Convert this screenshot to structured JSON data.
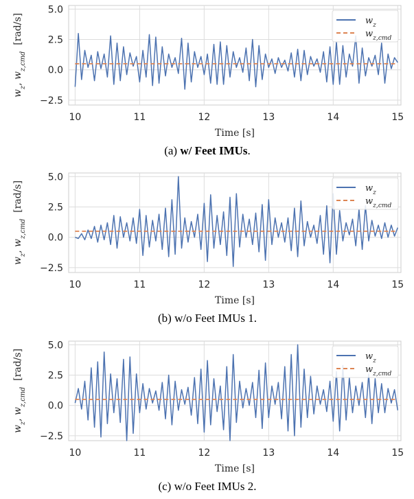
{
  "colors": {
    "wz": "#4c72b0",
    "cmd": "#dd8452",
    "grid": "#dcdcdc"
  },
  "chart_data": [
    {
      "type": "line",
      "caption_prefix": "(a) ",
      "caption_bold": "w/ Feet IMUs",
      "caption_suffix": ".",
      "xlabel": "Time [s]",
      "ylabel": "w_z, w_z,cmd [rad/s]",
      "xlim": [
        9.9,
        15.05
      ],
      "ylim": [
        -2.9,
        5.3
      ],
      "xticks": [
        10,
        11,
        12,
        13,
        14,
        15
      ],
      "yticks": [
        -2.5,
        0.0,
        2.5,
        5.0
      ],
      "legend": {
        "position": "top-right",
        "entries": [
          "w_z",
          "w_z,cmd"
        ]
      },
      "series": [
        {
          "name": "w_z",
          "style": "solid",
          "x": [
            10.0,
            10.05,
            10.1,
            10.15,
            10.2,
            10.25,
            10.3,
            10.35,
            10.4,
            10.45,
            10.5,
            10.55,
            10.6,
            10.65,
            10.7,
            10.75,
            10.8,
            10.85,
            10.9,
            10.95,
            11.0,
            11.05,
            11.1,
            11.15,
            11.2,
            11.25,
            11.3,
            11.35,
            11.4,
            11.45,
            11.5,
            11.55,
            11.6,
            11.65,
            11.7,
            11.75,
            11.8,
            11.85,
            11.9,
            11.95,
            12.0,
            12.05,
            12.1,
            12.15,
            12.2,
            12.25,
            12.3,
            12.35,
            12.4,
            12.45,
            12.5,
            12.55,
            12.6,
            12.65,
            12.7,
            12.75,
            12.8,
            12.85,
            12.9,
            12.95,
            13.0,
            13.05,
            13.1,
            13.15,
            13.2,
            13.25,
            13.3,
            13.35,
            13.4,
            13.45,
            13.5,
            13.55,
            13.6,
            13.65,
            13.7,
            13.75,
            13.8,
            13.85,
            13.9,
            13.95,
            14.0,
            14.05,
            14.1,
            14.15,
            14.2,
            14.25,
            14.3,
            14.35,
            14.4,
            14.45,
            14.5,
            14.55,
            14.6,
            14.65,
            14.7,
            14.75,
            14.8,
            14.85,
            14.9,
            14.95,
            15.0
          ],
          "y": [
            -1.4,
            3.0,
            -0.8,
            1.6,
            0.2,
            1.2,
            -0.9,
            1.5,
            0.1,
            1.3,
            -0.6,
            2.8,
            -1.2,
            2.2,
            -0.9,
            1.9,
            -0.4,
            1.4,
            0.3,
            1.1,
            -1.0,
            1.6,
            -0.6,
            2.9,
            -1.3,
            2.7,
            -1.1,
            1.9,
            -0.5,
            1.3,
            0.2,
            1.0,
            -0.3,
            2.6,
            -1.6,
            2.2,
            -1.0,
            1.5,
            0.2,
            1.1,
            -0.4,
            1.3,
            -1.1,
            2.1,
            -1.2,
            2.3,
            -1.2,
            2.0,
            -0.6,
            1.5,
            0.2,
            1.0,
            -0.2,
            1.8,
            -0.9,
            2.5,
            -1.4,
            2.0,
            -0.8,
            1.3,
            0.2,
            0.9,
            -0.3,
            1.0,
            0.2,
            0.8,
            -0.1,
            1.4,
            -0.6,
            1.7,
            -0.9,
            1.6,
            -0.4,
            1.1,
            0.3,
            0.9,
            -0.2,
            1.5,
            -1.0,
            1.9,
            -1.2,
            2.3,
            -1.2,
            2.0,
            -0.6,
            1.3,
            0.3,
            2.8,
            -1.1,
            1.8,
            -0.5,
            1.0,
            0.3,
            1.2,
            -0.4,
            2.2,
            -1.1,
            1.3,
            0.1,
            1.0,
            0.6
          ]
        },
        {
          "name": "w_z,cmd",
          "style": "dashed",
          "x": [
            10.0,
            15.0
          ],
          "y": [
            0.5,
            0.5
          ]
        }
      ]
    },
    {
      "type": "line",
      "caption_prefix": "(b) ",
      "caption_bold": "",
      "caption_suffix": "w/o Feet IMUs 1.",
      "xlabel": "Time [s]",
      "ylabel": "w_z, w_z,cmd [rad/s]",
      "xlim": [
        9.9,
        15.05
      ],
      "ylim": [
        -2.9,
        5.3
      ],
      "xticks": [
        10,
        11,
        12,
        13,
        14,
        15
      ],
      "yticks": [
        -2.5,
        0.0,
        2.5,
        5.0
      ],
      "legend": {
        "position": "top-right",
        "entries": [
          "w_z",
          "w_z,cmd"
        ]
      },
      "series": [
        {
          "name": "w_z",
          "style": "solid",
          "x": [
            10.0,
            10.05,
            10.1,
            10.15,
            10.2,
            10.25,
            10.3,
            10.35,
            10.4,
            10.45,
            10.5,
            10.55,
            10.6,
            10.65,
            10.7,
            10.75,
            10.8,
            10.85,
            10.9,
            10.95,
            11.0,
            11.05,
            11.1,
            11.15,
            11.2,
            11.25,
            11.3,
            11.35,
            11.4,
            11.45,
            11.5,
            11.55,
            11.6,
            11.65,
            11.7,
            11.75,
            11.8,
            11.85,
            11.9,
            11.95,
            12.0,
            12.05,
            12.1,
            12.15,
            12.2,
            12.25,
            12.3,
            12.35,
            12.4,
            12.45,
            12.5,
            12.55,
            12.6,
            12.65,
            12.7,
            12.75,
            12.8,
            12.85,
            12.9,
            12.95,
            13.0,
            13.05,
            13.1,
            13.15,
            13.2,
            13.25,
            13.3,
            13.35,
            13.4,
            13.45,
            13.5,
            13.55,
            13.6,
            13.65,
            13.7,
            13.75,
            13.8,
            13.85,
            13.9,
            13.95,
            14.0,
            14.05,
            14.1,
            14.15,
            14.2,
            14.25,
            14.3,
            14.35,
            14.4,
            14.45,
            14.5,
            14.55,
            14.6,
            14.65,
            14.7,
            14.75,
            14.8,
            14.85,
            14.9,
            14.95,
            15.0
          ],
          "y": [
            0.0,
            -0.1,
            0.3,
            -0.2,
            0.6,
            -0.1,
            0.9,
            -0.4,
            1.0,
            -0.2,
            1.2,
            -0.6,
            1.8,
            -0.9,
            1.7,
            0.0,
            1.2,
            -0.3,
            1.6,
            -0.5,
            2.3,
            -1.5,
            1.8,
            -0.8,
            1.4,
            -0.3,
            1.9,
            -1.0,
            2.4,
            -1.6,
            3.1,
            -1.4,
            5.0,
            -0.9,
            1.6,
            -0.4,
            1.3,
            0.0,
            1.9,
            -1.0,
            2.8,
            -2.0,
            3.5,
            -0.9,
            1.8,
            -0.6,
            2.1,
            -1.5,
            3.3,
            -2.4,
            3.6,
            -0.8,
            1.9,
            0.0,
            1.5,
            -0.6,
            2.0,
            -1.2,
            2.7,
            -1.9,
            3.1,
            -0.6,
            1.6,
            0.0,
            1.2,
            -0.4,
            1.6,
            -1.1,
            2.4,
            -1.6,
            3.0,
            -0.7,
            1.3,
            0.0,
            1.0,
            -0.5,
            1.8,
            -1.4,
            2.6,
            -2.1,
            3.6,
            -1.4,
            2.2,
            -0.3,
            1.2,
            0.2,
            1.5,
            -0.7,
            2.3,
            -1.0,
            2.6,
            -0.3,
            1.4,
            0.1,
            1.0,
            -0.1,
            1.2,
            0.0,
            1.0,
            0.1,
            0.8
          ]
        },
        {
          "name": "w_z,cmd",
          "style": "dashed",
          "x": [
            10.0,
            15.0
          ],
          "y": [
            0.5,
            0.5
          ]
        }
      ]
    },
    {
      "type": "line",
      "caption_prefix": "(c) ",
      "caption_bold": "",
      "caption_suffix": "w/o Feet IMUs 2.",
      "xlabel": "Time [s]",
      "ylabel": "w_z, w_z,cmd [rad/s]",
      "xlim": [
        9.9,
        15.05
      ],
      "ylim": [
        -2.9,
        5.3
      ],
      "xticks": [
        10,
        11,
        12,
        13,
        14,
        15
      ],
      "yticks": [
        -2.5,
        0.0,
        2.5,
        5.0
      ],
      "legend": {
        "position": "top-right",
        "entries": [
          "w_z",
          "w_z,cmd"
        ]
      },
      "series": [
        {
          "name": "w_z",
          "style": "solid",
          "x": [
            10.0,
            10.05,
            10.1,
            10.15,
            10.2,
            10.25,
            10.3,
            10.35,
            10.4,
            10.45,
            10.5,
            10.55,
            10.6,
            10.65,
            10.7,
            10.75,
            10.8,
            10.85,
            10.9,
            10.95,
            11.0,
            11.05,
            11.1,
            11.15,
            11.2,
            11.25,
            11.3,
            11.35,
            11.4,
            11.45,
            11.5,
            11.55,
            11.6,
            11.65,
            11.7,
            11.75,
            11.8,
            11.85,
            11.9,
            11.95,
            12.0,
            12.05,
            12.1,
            12.15,
            12.2,
            12.25,
            12.3,
            12.35,
            12.4,
            12.45,
            12.5,
            12.55,
            12.6,
            12.65,
            12.7,
            12.75,
            12.8,
            12.85,
            12.9,
            12.95,
            13.0,
            13.05,
            13.1,
            13.15,
            13.2,
            13.25,
            13.3,
            13.35,
            13.4,
            13.45,
            13.5,
            13.55,
            13.6,
            13.65,
            13.7,
            13.75,
            13.8,
            13.85,
            13.9,
            13.95,
            14.0,
            14.05,
            14.1,
            14.15,
            14.2,
            14.25,
            14.3,
            14.35,
            14.4,
            14.45,
            14.5,
            14.55,
            14.6,
            14.65,
            14.7,
            14.75,
            14.8,
            14.85,
            14.9,
            14.95,
            15.0
          ],
          "y": [
            0.2,
            1.4,
            -0.3,
            2.0,
            -1.2,
            3.1,
            -1.8,
            3.6,
            -2.6,
            4.4,
            -1.5,
            2.6,
            -0.6,
            2.2,
            -1.4,
            3.8,
            -2.9,
            4.0,
            -2.3,
            2.6,
            -0.6,
            1.8,
            -0.3,
            1.4,
            0.2,
            1.2,
            -0.4,
            1.9,
            -1.1,
            2.5,
            -1.6,
            2.0,
            -0.4,
            1.3,
            0.1,
            1.5,
            -0.8,
            2.3,
            -1.5,
            3.0,
            -2.2,
            3.7,
            -1.6,
            2.2,
            -0.5,
            1.6,
            -2.0,
            3.2,
            -2.9,
            4.2,
            -1.4,
            2.0,
            -0.2,
            1.4,
            0.0,
            1.9,
            -1.0,
            2.9,
            -1.9,
            3.5,
            -1.0,
            1.6,
            0.1,
            1.9,
            -1.1,
            3.2,
            -2.1,
            4.2,
            -2.5,
            5.0,
            -1.8,
            3.0,
            -1.0,
            2.4,
            -0.7,
            1.6,
            0.1,
            1.3,
            -0.5,
            2.0,
            -1.3,
            2.8,
            -2.1,
            3.3,
            -1.2,
            2.3,
            -0.6,
            1.6,
            0.0,
            1.9,
            -1.0,
            2.6,
            -1.5,
            2.2,
            -0.6,
            1.8,
            -0.6,
            1.4,
            0.2,
            1.3,
            -0.4
          ]
        },
        {
          "name": "w_z,cmd",
          "style": "dashed",
          "x": [
            10.0,
            15.0
          ],
          "y": [
            0.5,
            0.5
          ]
        }
      ]
    }
  ]
}
